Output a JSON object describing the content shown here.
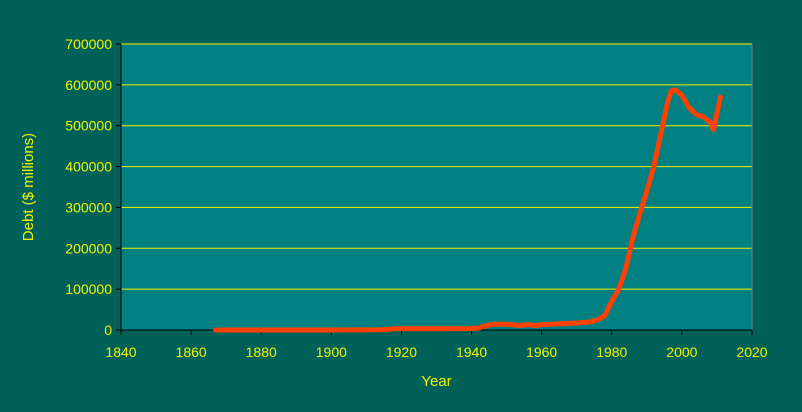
{
  "colors": {
    "page_background": "#006159",
    "plot_background": "#008080",
    "gridline": "#f2f200",
    "axis": "#000000",
    "text": "#f2f200",
    "series_line": "#ff4000"
  },
  "chart_data": {
    "type": "line",
    "title": "",
    "xlabel": "Year",
    "ylabel": "Debt ($ millions)",
    "xlim": [
      1840,
      2020
    ],
    "ylim": [
      0,
      700000
    ],
    "xticks": [
      1840,
      1860,
      1880,
      1900,
      1920,
      1940,
      1960,
      1980,
      2000,
      2020
    ],
    "yticks": [
      0,
      100000,
      200000,
      300000,
      400000,
      500000,
      600000,
      700000
    ],
    "grid": "horizontal",
    "legend": "none",
    "series": [
      {
        "color": "#ff4000",
        "x": [
          1867,
          1880,
          1900,
          1914,
          1918,
          1920,
          1930,
          1939,
          1942,
          1944,
          1946,
          1950,
          1954,
          1956,
          1958,
          1960,
          1965,
          1970,
          1974,
          1976,
          1978,
          1980,
          1982,
          1984,
          1986,
          1988,
          1990,
          1992,
          1994,
          1996,
          1997,
          1998,
          2000,
          2002,
          2004,
          2006,
          2008,
          2009,
          2011
        ],
        "y": [
          0,
          0,
          0,
          500,
          3000,
          3000,
          3000,
          3500,
          5000,
          10000,
          14000,
          14000,
          11000,
          13000,
          11000,
          13000,
          15000,
          17000,
          20000,
          25000,
          35000,
          70000,
          100000,
          150000,
          225000,
          285000,
          340000,
          400000,
          480000,
          560000,
          585000,
          588000,
          575000,
          545000,
          528000,
          522000,
          510000,
          490000,
          570000
        ]
      }
    ]
  }
}
